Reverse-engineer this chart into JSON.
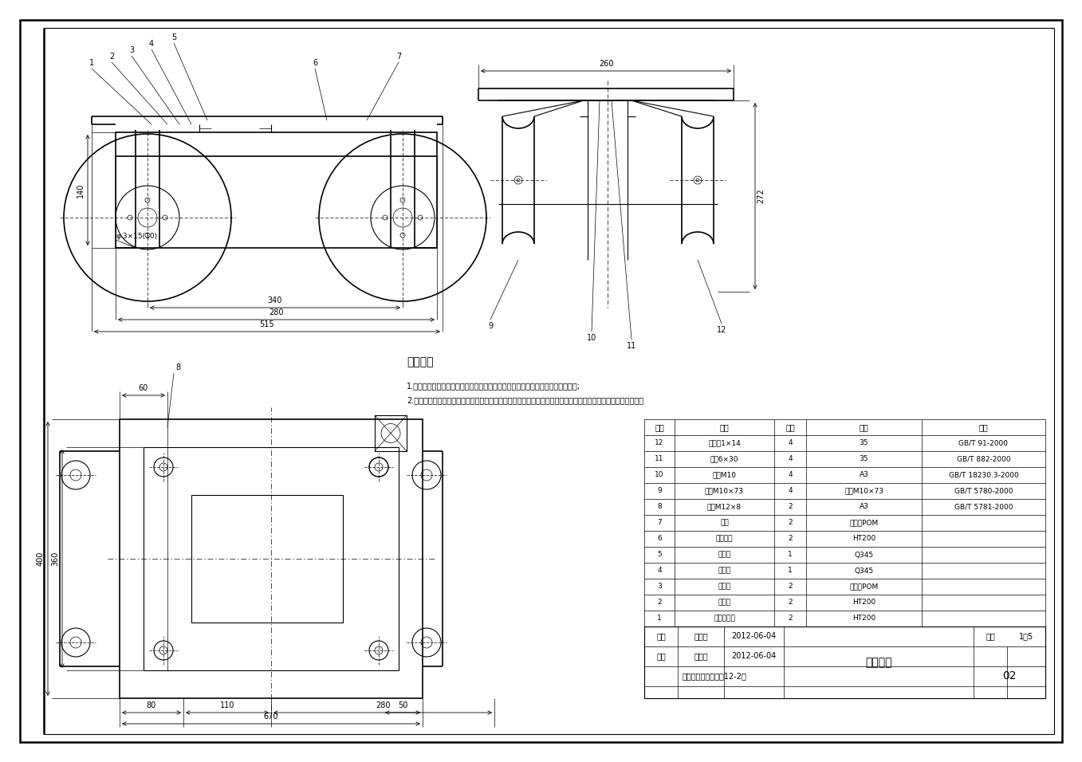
{
  "bg_color": "#ffffff",
  "lc": "#000000",
  "tech_req_title": "技术要求",
  "tech_req_line1": "1.零件在装配前必须清洗干净，不得有毛刺、飞边、氧化皮、锈蚀、切屑和灰尘等;",
  "tech_req_line2": "2.螺钉、螺栓和螺母紧固时，严禁打击或使用不合适的呆扳手，紧固后螺钉槽、螺母和螺钉、螺栓头部不得损坏。",
  "table_rows": [
    [
      "12",
      "开口销1×14",
      "4",
      "35",
      "GB/T 91-2000"
    ],
    [
      "11",
      "销轴6×30",
      "4",
      "35",
      "GB/T 882-2000"
    ],
    [
      "10",
      "螺母M10",
      "4",
      "A3",
      "GB/T 18230.3-2000"
    ],
    [
      "9",
      "螺栓M10×73",
      "4",
      "螺栓M10×73",
      "GB/T 5780-2000"
    ],
    [
      "8",
      "螺栓M12×8",
      "2",
      "A3",
      "GB/T 5781-2000"
    ],
    [
      "7",
      "脚轮",
      "2",
      "聚乙烯POM",
      ""
    ],
    [
      "6",
      "脚轮支架",
      "2",
      "HT200",
      ""
    ],
    [
      "5",
      "上机架",
      "1",
      "Q345",
      ""
    ],
    [
      "4",
      "下机架",
      "1",
      "Q345",
      ""
    ],
    [
      "3",
      "万向轮",
      "2",
      "聚乙烯POM",
      ""
    ],
    [
      "2",
      "连接板",
      "2",
      "HT200",
      ""
    ],
    [
      "1",
      "万向轮支架",
      "2",
      "HT200",
      ""
    ]
  ],
  "table_header": [
    "序号",
    "名称",
    "数量",
    "材料",
    "备注"
  ],
  "drawn_by": "陈作丰",
  "drawn_date": "2012-06-04",
  "checked_by": "范修文",
  "checked_date": "2012-06-04",
  "drawing_name": "机架装配",
  "scale": "1：5",
  "sheet": "02",
  "school": "举里木大学机械设计12-2班"
}
